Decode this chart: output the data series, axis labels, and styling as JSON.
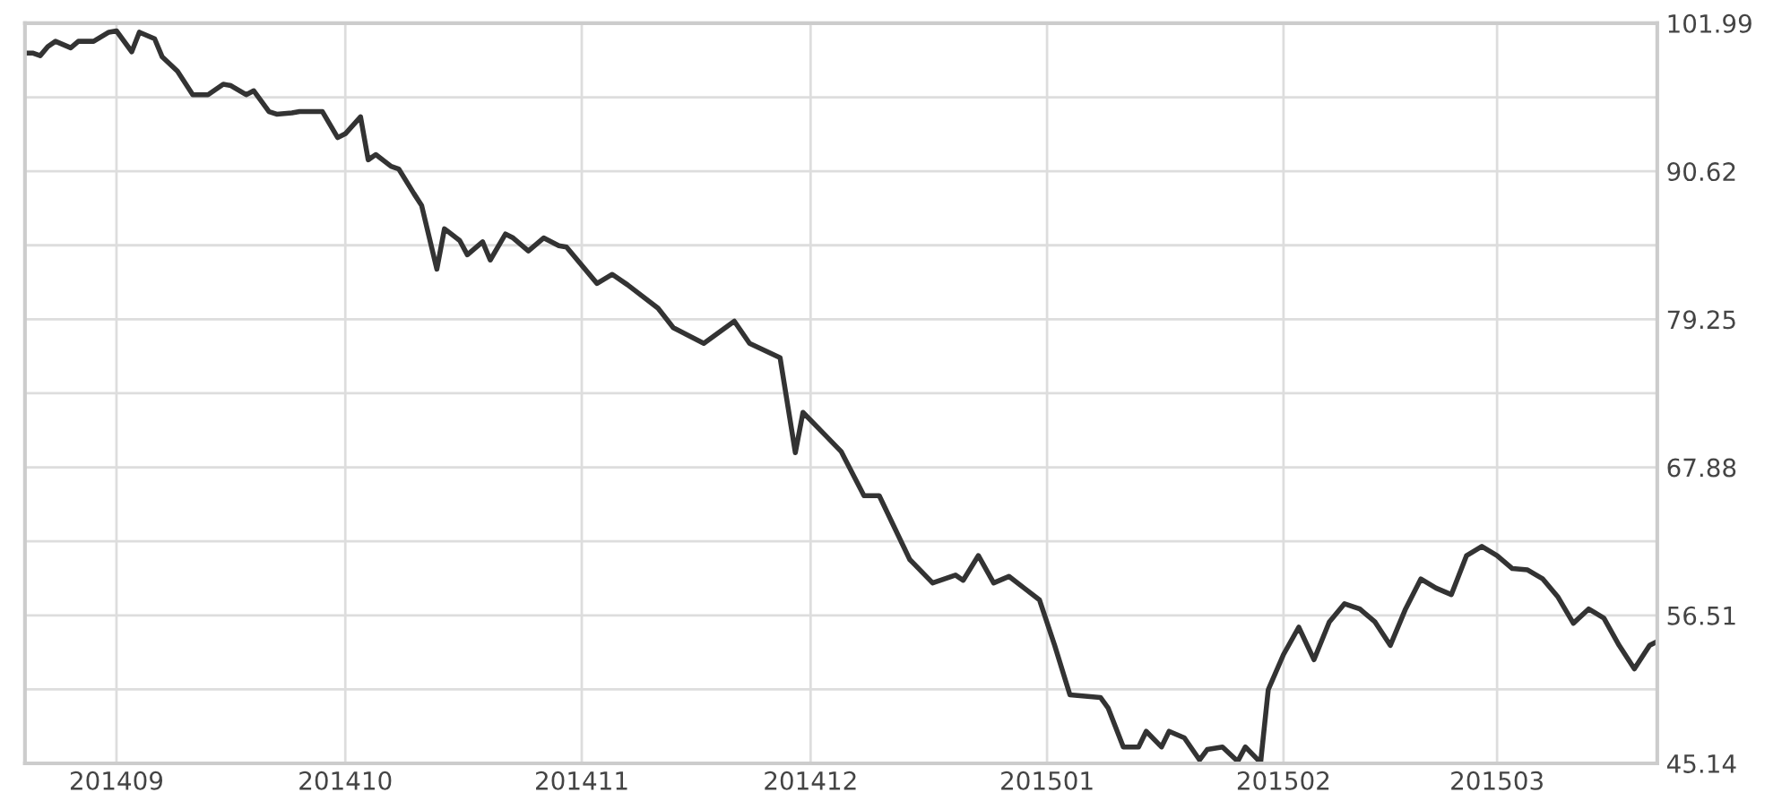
{
  "chart_data": {
    "type": "line",
    "x": [
      "2014-08-20",
      "2014-08-21",
      "2014-08-22",
      "2014-08-23",
      "2014-08-24",
      "2014-08-26",
      "2014-08-27",
      "2014-08-29",
      "2014-08-31",
      "2014-09-01",
      "2014-09-03",
      "2014-09-04",
      "2014-09-06",
      "2014-09-07",
      "2014-09-09",
      "2014-09-11",
      "2014-09-13",
      "2014-09-15",
      "2014-09-16",
      "2014-09-18",
      "2014-09-19",
      "2014-09-21",
      "2014-09-22",
      "2014-09-24",
      "2014-09-25",
      "2014-09-28",
      "2014-09-30",
      "2014-10-01",
      "2014-10-03",
      "2014-10-04",
      "2014-10-05",
      "2014-10-07",
      "2014-10-08",
      "2014-10-10",
      "2014-10-11",
      "2014-10-13",
      "2014-10-14",
      "2014-10-16",
      "2014-10-17",
      "2014-10-19",
      "2014-10-20",
      "2014-10-22",
      "2014-10-23",
      "2014-10-25",
      "2014-10-27",
      "2014-10-29",
      "2014-10-30",
      "2014-11-03",
      "2014-11-05",
      "2014-11-07",
      "2014-11-11",
      "2014-11-13",
      "2014-11-17",
      "2014-11-21",
      "2014-11-23",
      "2014-11-27",
      "2014-11-29",
      "2014-11-30",
      "2014-12-03",
      "2014-12-05",
      "2014-12-08",
      "2014-12-10",
      "2014-12-14",
      "2014-12-17",
      "2014-12-20",
      "2014-12-21",
      "2014-12-23",
      "2014-12-25",
      "2014-12-27",
      "2014-12-29",
      "2014-12-31",
      "2015-01-02",
      "2015-01-04",
      "2015-01-08",
      "2015-01-09",
      "2015-01-11",
      "2015-01-13",
      "2015-01-14",
      "2015-01-16",
      "2015-01-17",
      "2015-01-19",
      "2015-01-21",
      "2015-01-22",
      "2015-01-24",
      "2015-01-26",
      "2015-01-27",
      "2015-01-29",
      "2015-01-30",
      "2015-02-01",
      "2015-02-03",
      "2015-02-05",
      "2015-02-07",
      "2015-02-09",
      "2015-02-11",
      "2015-02-13",
      "2015-02-15",
      "2015-02-17",
      "2015-02-19",
      "2015-02-21",
      "2015-02-23",
      "2015-02-25",
      "2015-02-27",
      "2015-03-01",
      "2015-03-03",
      "2015-03-05",
      "2015-03-07",
      "2015-03-09",
      "2015-03-11",
      "2015-03-13",
      "2015-03-15",
      "2015-03-17",
      "2015-03-19",
      "2015-03-21",
      "2015-03-22"
    ],
    "series": [
      {
        "color": "#333333",
        "values": [
          99.7,
          99.7,
          99.5,
          100.2,
          100.6,
          100.1,
          100.6,
          100.6,
          101.3,
          101.4,
          99.8,
          101.3,
          100.8,
          99.4,
          98.3,
          96.5,
          96.5,
          97.3,
          97.2,
          96.5,
          96.8,
          95.2,
          95.0,
          95.1,
          95.2,
          95.2,
          93.2,
          93.5,
          94.8,
          91.5,
          91.9,
          91.0,
          90.8,
          88.9,
          88.0,
          83.1,
          86.2,
          85.3,
          84.2,
          85.2,
          83.8,
          85.8,
          85.5,
          84.5,
          85.5,
          84.9,
          84.8,
          82.0,
          82.7,
          81.9,
          80.1,
          78.6,
          77.4,
          79.1,
          77.4,
          76.3,
          69.0,
          72.1,
          70.3,
          69.1,
          65.7,
          65.7,
          60.8,
          59.0,
          59.6,
          59.2,
          61.1,
          59.0,
          59.5,
          58.6,
          57.7,
          54.2,
          50.4,
          50.2,
          49.4,
          46.4,
          46.4,
          47.6,
          46.4,
          47.6,
          47.1,
          45.4,
          46.2,
          46.4,
          45.3,
          46.4,
          45.2,
          50.8,
          53.5,
          55.6,
          53.1,
          56.0,
          57.4,
          57.0,
          56.0,
          54.2,
          57.0,
          59.3,
          58.6,
          58.1,
          61.1,
          61.8,
          61.1,
          60.1,
          60.0,
          59.3,
          57.9,
          55.9,
          57.0,
          56.3,
          54.2,
          52.4,
          54.2,
          54.5
        ]
      }
    ],
    "xlim": [
      "2014-08-20",
      "2015-03-22"
    ],
    "xticks": [
      {
        "value": "2014-09-01",
        "label": "201409"
      },
      {
        "value": "2014-10-01",
        "label": "201410"
      },
      {
        "value": "2014-11-01",
        "label": "201411"
      },
      {
        "value": "2014-12-01",
        "label": "201412"
      },
      {
        "value": "2015-01-01",
        "label": "201501"
      },
      {
        "value": "2015-02-01",
        "label": "201502"
      },
      {
        "value": "2015-03-01",
        "label": "201503"
      }
    ],
    "ylim": [
      45.14,
      101.99
    ],
    "yticks": [
      45.14,
      56.51,
      67.88,
      79.25,
      90.62,
      101.99
    ],
    "grid": true,
    "line_style": "solid",
    "marker": "none"
  }
}
